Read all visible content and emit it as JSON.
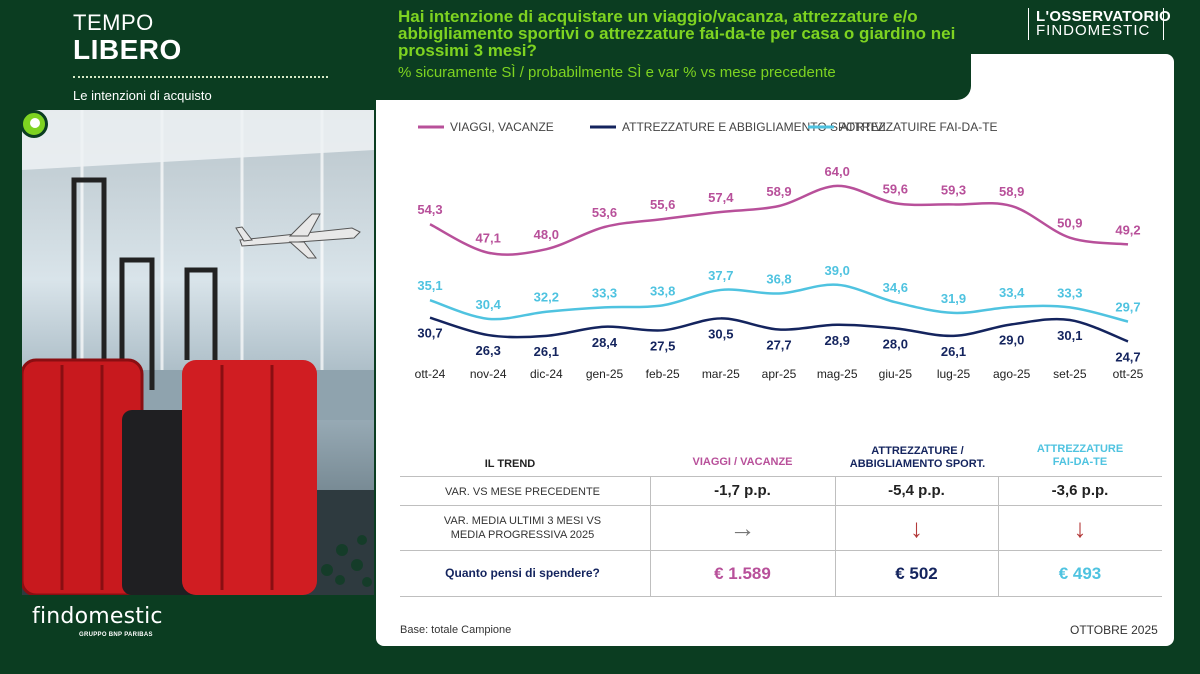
{
  "header": {
    "section_line1": "TEMPO",
    "section_line2": "LIBERO",
    "subtitle": "Le intenzioni di acquisto"
  },
  "question": {
    "title": "Hai intenzione di acquistare un viaggio/vacanza, attrezzature e/o abbigliamento sportivi o attrezzature fai-da-te per casa o giardino nei prossimi 3 mesi?",
    "subtitle": "% sicuramente SÌ / probabilmente SÌ e var % vs mese precedente"
  },
  "brand": {
    "line1": "L'OSSERVATORIO",
    "line2": "FINDOMESTIC",
    "logo": "findomestic",
    "logo_sub": "GRUPPO BNP PARIBAS"
  },
  "colors": {
    "viaggi": "#b8509a",
    "sport": "#14245e",
    "faidate": "#4fc3e0",
    "green": "#7ed321",
    "background": "#0b3d21",
    "arrow_red": "#b33a3a",
    "arrow_grey": "#777777"
  },
  "chart_data": {
    "type": "line",
    "categories": [
      "ott-24",
      "nov-24",
      "dic-24",
      "gen-25",
      "feb-25",
      "mar-25",
      "apr-25",
      "mag-25",
      "giu-25",
      "lug-25",
      "ago-25",
      "set-25",
      "ott-25"
    ],
    "series": [
      {
        "name": "VIAGGI, VACANZE",
        "color": "#b8509a",
        "values": [
          54.3,
          47.1,
          48.0,
          53.6,
          55.6,
          57.4,
          58.9,
          64.0,
          59.6,
          59.3,
          58.9,
          50.9,
          49.2
        ],
        "labels": [
          "54,3",
          "47,1",
          "48,0",
          "53,6",
          "55,6",
          "57,4",
          "58,9",
          "64,0",
          "59,6",
          "59,3",
          "58,9",
          "50,9",
          "49,2"
        ]
      },
      {
        "name": "ATTREZZATURE E ABBIGLIAMENTO SPORTIVI",
        "color": "#14245e",
        "values": [
          30.7,
          26.3,
          26.1,
          28.4,
          27.5,
          30.5,
          27.7,
          28.9,
          28.0,
          26.1,
          29.0,
          30.1,
          24.7
        ],
        "labels": [
          "30,7",
          "26,3",
          "26,1",
          "28,4",
          "27,5",
          "30,5",
          "27,7",
          "28,9",
          "28,0",
          "26,1",
          "29,0",
          "30,1",
          "24,7"
        ]
      },
      {
        "name": "ATTREZZATUIRE FAI-DA-TE",
        "color": "#4fc3e0",
        "values": [
          35.1,
          30.4,
          32.2,
          33.3,
          33.8,
          37.7,
          36.8,
          39.0,
          34.6,
          31.9,
          33.4,
          33.3,
          29.7
        ],
        "labels": [
          "35,1",
          "30,4",
          "32,2",
          "33,3",
          "33,8",
          "37,7",
          "36,8",
          "39,0",
          "34,6",
          "31,9",
          "33,4",
          "33,3",
          "29,7"
        ]
      }
    ],
    "legend": "top",
    "grid": false
  },
  "trend": {
    "heading": "IL TREND",
    "columns": [
      {
        "label": "VIAGGI / VACANZE",
        "color": "#b8509a"
      },
      {
        "label": "ATTREZZATURE / ABBIGLIAMENTO SPORT.",
        "label_line1": "ATTREZZATURE /",
        "label_line2": "ABBIGLIAMENTO SPORT.",
        "color": "#14245e"
      },
      {
        "label": "ATTREZZATURE FAI-DA-TE",
        "label_line1": "ATTREZZATURE",
        "label_line2": "FAI-DA-TE",
        "color": "#4fc3e0"
      }
    ],
    "row_var": {
      "label": "VAR. VS MESE PRECEDENTE",
      "values": [
        "-1,7 p.p.",
        "-5,4 p.p.",
        "-3,6 p.p."
      ]
    },
    "row_media": {
      "label_line1": "VAR.  MEDIA ULTIMI 3 MESI VS",
      "label_line2": "MEDIA PROGRESSIVA  2025",
      "arrows": [
        "arrow-right-icon",
        "arrow-down-icon",
        "arrow-down-icon"
      ],
      "glyphs": [
        "→",
        "↓",
        "↓"
      ]
    },
    "row_spend": {
      "label": "Quanto pensi di spendere?",
      "values": [
        "€ 1.589",
        "€ 502",
        "€ 493"
      ]
    }
  },
  "footer": {
    "base": "Base: totale Campione",
    "date": "OTTOBRE 2025"
  }
}
